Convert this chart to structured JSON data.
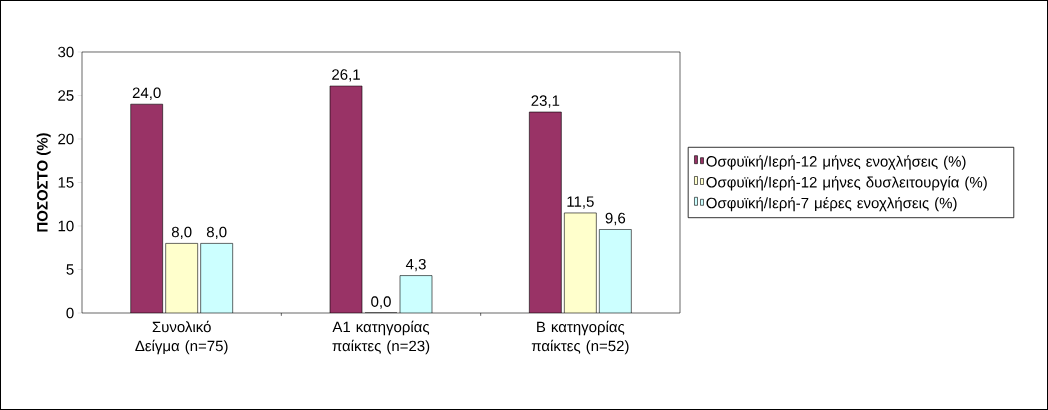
{
  "chart_data": {
    "type": "bar",
    "ylabel": "ΠΟΣΟΣΤΟ (%)",
    "categories": [
      "Συνολικό Δείγμα (n=75)",
      "Α1 κατηγορίας παίκτες (n=23)",
      "Β κατηγορίας παίκτες (n=52)"
    ],
    "series": [
      {
        "name": "Οσφυϊκή/Ιερή-12 μήνες ενοχλήσεις (%)",
        "color": "#993366",
        "values": [
          24.0,
          26.1,
          23.1
        ],
        "value_labels": [
          "24,0",
          "26,1",
          "23,1"
        ]
      },
      {
        "name": "Οσφυϊκή/Ιερή-12 μήνες δυσλειτουργία (%)",
        "color": "#ffffcc",
        "values": [
          8.0,
          0.0,
          11.5
        ],
        "value_labels": [
          "8,0",
          "0,0",
          "11,5"
        ]
      },
      {
        "name": "Οσφυϊκή/Ιερή-7 μέρες ενοχλήσεις (%)",
        "color": "#ccffff",
        "values": [
          8.0,
          4.3,
          9.6
        ],
        "value_labels": [
          "8,0",
          "4,3",
          "9,6"
        ]
      }
    ],
    "ylim": [
      0,
      30
    ],
    "yticks": [
      0,
      5,
      10,
      15,
      20,
      25,
      30
    ],
    "legend": "right",
    "grid": false
  }
}
